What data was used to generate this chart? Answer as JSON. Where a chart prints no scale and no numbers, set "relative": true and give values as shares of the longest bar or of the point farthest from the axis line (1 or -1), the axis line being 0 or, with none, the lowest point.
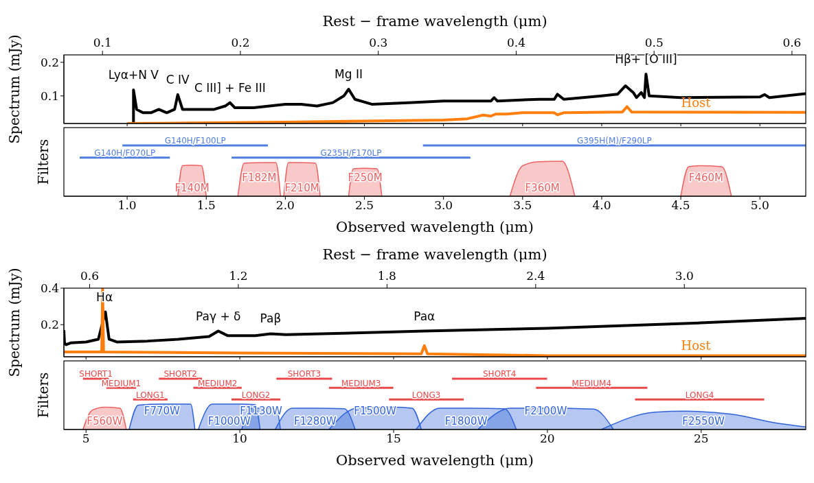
{
  "chart_data": [
    {
      "type": "line",
      "xlim": [
        0.6,
        5.29
      ],
      "xticks": [
        1,
        1.5,
        2,
        2.5,
        3,
        3.5,
        4,
        4.5,
        5
      ],
      "x2lim": [
        0.072,
        0.61
      ],
      "x2ticks": [
        0.1,
        0.2,
        0.3,
        0.4,
        0.5,
        0.6
      ],
      "x2label": "Rest − frame wavelength (μm)",
      "ylim": [
        0.018,
        0.222
      ],
      "yticks": [
        0.1,
        0.2
      ],
      "ylabel": "Spectrum (mJy)",
      "tick_labels": "y",
      "series": [
        {
          "color": "#000000",
          "x": [
            1.04,
            1.04,
            1.06,
            1.1,
            1.15,
            1.2,
            1.25,
            1.3,
            1.32,
            1.35,
            1.45,
            1.55,
            1.62,
            1.65,
            1.68,
            1.8,
            2.0,
            2.1,
            2.2,
            2.3,
            2.37,
            2.4,
            2.44,
            2.55,
            2.8,
            3.0,
            3.3,
            3.32,
            3.34,
            3.6,
            3.7,
            3.72,
            3.76,
            4.0,
            4.1,
            4.15,
            4.2,
            4.22,
            4.25,
            4.27,
            4.28,
            4.3,
            4.5,
            5.0,
            5.03,
            5.06,
            5.29
          ],
          "values": [
            0.02,
            0.118,
            0.06,
            0.05,
            0.05,
            0.06,
            0.05,
            0.06,
            0.104,
            0.06,
            0.06,
            0.06,
            0.07,
            0.08,
            0.065,
            0.065,
            0.075,
            0.075,
            0.07,
            0.08,
            0.1,
            0.12,
            0.09,
            0.075,
            0.08,
            0.085,
            0.085,
            0.095,
            0.085,
            0.09,
            0.09,
            0.105,
            0.09,
            0.1,
            0.105,
            0.13,
            0.11,
            0.095,
            0.11,
            0.095,
            0.165,
            0.1,
            0.095,
            0.097,
            0.104,
            0.095,
            0.107
          ]
        },
        {
          "name": "Host",
          "color": "#ff7f0e",
          "x": [
            1.0,
            2.0,
            3.0,
            3.15,
            3.25,
            3.3,
            3.33,
            3.4,
            3.5,
            3.7,
            3.72,
            3.76,
            4.13,
            4.16,
            4.19,
            5.29
          ],
          "values": [
            0.018,
            0.022,
            0.028,
            0.032,
            0.043,
            0.04,
            0.046,
            0.046,
            0.05,
            0.05,
            0.044,
            0.05,
            0.052,
            0.068,
            0.052,
            0.051
          ]
        }
      ],
      "annotations": [
        {
          "text": "Lyα+N V",
          "x": 1.04,
          "y": 0.118
        },
        {
          "text": "C IV",
          "x": 1.32,
          "y": 0.104
        },
        {
          "text": "C III] + Fe III",
          "x": 1.65,
          "y": 0.08
        },
        {
          "text": "Mg II",
          "x": 2.4,
          "y": 0.12
        },
        {
          "text": "Hβ+ [O III]",
          "x": 4.28,
          "y": 0.165
        }
      ]
    },
    {
      "type": "area",
      "relative": true,
      "xlim": [
        0.6,
        5.29
      ],
      "xticks": [
        {
          "value": 1,
          "label": "1.0"
        },
        1.5,
        {
          "value": 2,
          "label": "2.0"
        },
        2.5,
        {
          "value": 3,
          "label": "3.0"
        },
        3.5,
        {
          "value": 4,
          "label": "4.0"
        },
        4.5,
        {
          "value": 5,
          "label": "5.0"
        }
      ],
      "xlabel": "Observed wavelength (μm)",
      "ylabel": "Filters",
      "tick_labels": "x",
      "series": [
        {
          "type": "line",
          "name": "G140H/F100LP",
          "color": "#4f7ee0",
          "x": [
            0.97,
            1.89
          ],
          "values": [
            1,
            1
          ]
        },
        {
          "type": "line",
          "name": "G140H/F070LP",
          "color": "#4f7ee0",
          "x": [
            0.7,
            1.27
          ],
          "values": [
            0.76,
            0.76
          ]
        },
        {
          "type": "line",
          "name": "G235H/F170LP",
          "color": "#4f7ee0",
          "x": [
            1.66,
            3.17
          ],
          "values": [
            0.76,
            0.76
          ]
        },
        {
          "type": "line",
          "name": "G395H(M)/F290LP",
          "color": "#4f7ee0",
          "x": [
            2.87,
            5.29
          ],
          "values": [
            1,
            1
          ]
        },
        {
          "name": "F140M",
          "color": "#ee6060",
          "x": [
            1.32,
            1.35,
            1.4,
            1.47,
            1.5
          ],
          "values": [
            0,
            0.6,
            0.61,
            0.6,
            0
          ]
        },
        {
          "name": "F182M",
          "color": "#ee6060",
          "x": [
            1.7,
            1.74,
            1.85,
            1.94,
            1.97
          ],
          "values": [
            0,
            0.65,
            0.66,
            0.66,
            0
          ]
        },
        {
          "name": "F210M",
          "color": "#ee6060",
          "x": [
            1.99,
            2.02,
            2.1,
            2.19,
            2.22
          ],
          "values": [
            0,
            0.66,
            0.66,
            0.65,
            0
          ]
        },
        {
          "name": "F250M",
          "color": "#ee6060",
          "x": [
            2.4,
            2.43,
            2.5,
            2.58,
            2.61
          ],
          "values": [
            0,
            0.54,
            0.55,
            0.54,
            0
          ]
        },
        {
          "name": "F360M",
          "color": "#ee6060",
          "x": [
            3.42,
            3.5,
            3.6,
            3.75,
            3.83
          ],
          "values": [
            0,
            0.6,
            0.68,
            0.69,
            0
          ]
        },
        {
          "name": "F460M",
          "color": "#ee6060",
          "x": [
            4.5,
            4.55,
            4.62,
            4.76,
            4.82
          ],
          "values": [
            0,
            0.58,
            0.6,
            0.58,
            0
          ]
        }
      ]
    },
    {
      "type": "line",
      "xlim": [
        4.28,
        28.4
      ],
      "xticks": [
        5,
        10,
        15,
        20,
        25
      ],
      "x2lim": [
        0.496,
        3.49
      ],
      "x2ticks": [
        0.6,
        1.2,
        1.8,
        2.4,
        {
          "value": 3,
          "label": "3.0"
        }
      ],
      "x2label": "Rest − frame wavelength (μm)",
      "ylim": [
        0.024,
        0.4
      ],
      "yticks": [
        0.2,
        0.4
      ],
      "ylabel": "Spectrum (mJy)",
      "tick_labels": "y",
      "series": [
        {
          "color": "#000000",
          "x": [
            4.28,
            4.3,
            4.35,
            4.5,
            5.0,
            5.4,
            5.63,
            5.75,
            6.0,
            7.0,
            8.0,
            9.0,
            9.3,
            9.6,
            10.5,
            11.0,
            11.5,
            15.0,
            16.0,
            20.0,
            25.0,
            28.4
          ],
          "values": [
            0.17,
            0.1,
            0.09,
            0.1,
            0.105,
            0.12,
            0.27,
            0.12,
            0.105,
            0.11,
            0.12,
            0.135,
            0.165,
            0.14,
            0.14,
            0.15,
            0.145,
            0.16,
            0.165,
            0.18,
            0.21,
            0.235
          ]
        },
        {
          "name": "Host",
          "color": "#ff7f0e",
          "x": [
            4.28,
            5.51,
            5.54,
            5.57,
            10.0,
            15.9,
            16.0,
            16.1,
            20.0,
            28.4
          ],
          "values": [
            0.05,
            0.05,
            0.4,
            0.05,
            0.045,
            0.04,
            0.085,
            0.04,
            0.03,
            0.03
          ]
        }
      ],
      "annotations": [
        {
          "text": "Hα",
          "x": 5.6,
          "y": 0.27
        },
        {
          "text": "Paγ + δ",
          "x": 9.3,
          "y": 0.165
        },
        {
          "text": "Paβ",
          "x": 11.0,
          "y": 0.15
        },
        {
          "text": "Paα",
          "x": 16.0,
          "y": 0.165
        }
      ]
    },
    {
      "type": "area",
      "relative": true,
      "xlim": [
        4.28,
        28.4
      ],
      "xticks": [
        5,
        10,
        15,
        20,
        25
      ],
      "xlabel": "Observed wavelength (μm)",
      "ylabel": "Filters",
      "tick_labels": "x",
      "series": [
        {
          "type": "line",
          "name": "SHORT1",
          "color": "#e84848",
          "x": [
            4.9,
            5.74
          ],
          "values": [
            1,
            1
          ]
        },
        {
          "type": "line",
          "name": "MEDIUM1",
          "color": "#e84848",
          "x": [
            5.66,
            6.63
          ],
          "values": [
            0.82,
            0.82
          ]
        },
        {
          "type": "line",
          "name": "LONG1",
          "color": "#e84848",
          "x": [
            6.53,
            7.65
          ],
          "values": [
            0.59,
            0.59
          ]
        },
        {
          "type": "line",
          "name": "SHORT2",
          "color": "#e84848",
          "x": [
            7.37,
            8.77
          ],
          "values": [
            1,
            1
          ]
        },
        {
          "type": "line",
          "name": "MEDIUM2",
          "color": "#e84848",
          "x": [
            8.49,
            10.06
          ],
          "values": [
            0.82,
            0.82
          ]
        },
        {
          "type": "line",
          "name": "LONG2",
          "color": "#e84848",
          "x": [
            9.73,
            11.32
          ],
          "values": [
            0.59,
            0.59
          ]
        },
        {
          "type": "line",
          "name": "SHORT3",
          "color": "#e84848",
          "x": [
            11.19,
            13.0
          ],
          "values": [
            1,
            1
          ]
        },
        {
          "type": "line",
          "name": "MEDIUM3",
          "color": "#e84848",
          "x": [
            12.9,
            14.99
          ],
          "values": [
            0.82,
            0.82
          ]
        },
        {
          "type": "line",
          "name": "LONG3",
          "color": "#e84848",
          "x": [
            14.85,
            17.28
          ],
          "values": [
            0.59,
            0.59
          ]
        },
        {
          "type": "line",
          "name": "SHORT4",
          "color": "#e84848",
          "x": [
            16.9,
            19.99
          ],
          "values": [
            1,
            1
          ]
        },
        {
          "type": "line",
          "name": "MEDIUM4",
          "color": "#e84848",
          "x": [
            19.63,
            23.25
          ],
          "values": [
            0.82,
            0.82
          ]
        },
        {
          "type": "line",
          "name": "LONG4",
          "color": "#e84848",
          "x": [
            22.85,
            27.05
          ],
          "values": [
            0.59,
            0.59
          ]
        },
        {
          "name": "F560W",
          "color": "#ee6060",
          "x": [
            4.9,
            5.2,
            5.6,
            6.1,
            6.31
          ],
          "values": [
            0,
            0.38,
            0.44,
            0.42,
            0
          ]
        },
        {
          "name": "F770W",
          "color": "#2f62d8",
          "x": [
            6.4,
            6.7,
            7.5,
            8.4,
            8.54
          ],
          "values": [
            0,
            0.48,
            0.5,
            0.5,
            0
          ]
        },
        {
          "name": "F1000W",
          "color": "#2f62d8",
          "x": [
            8.65,
            9.1,
            10.0,
            10.5,
            10.66
          ],
          "values": [
            0,
            0.5,
            0.5,
            0.49,
            0
          ]
        },
        {
          "name": "F1130W",
          "color": "#2f62d8",
          "x": [
            10.06,
            10.4,
            10.8,
            11.2,
            11.32
          ],
          "values": [
            0,
            0.42,
            0.42,
            0.4,
            0
          ]
        },
        {
          "name": "F1280W",
          "color": "#2f62d8",
          "x": [
            11.15,
            11.7,
            12.5,
            13.4,
            13.75
          ],
          "values": [
            0,
            0.42,
            0.42,
            0.41,
            0
          ]
        },
        {
          "name": "F1500W",
          "color": "#2f62d8",
          "x": [
            12.9,
            13.8,
            15.0,
            15.6,
            15.9
          ],
          "values": [
            0,
            0.42,
            0.44,
            0.42,
            0
          ]
        },
        {
          "name": "F1800W",
          "color": "#2f62d8",
          "x": [
            15.73,
            16.5,
            17.5,
            18.6,
            18.99
          ],
          "values": [
            0,
            0.42,
            0.42,
            0.41,
            0
          ]
        },
        {
          "name": "F2100W",
          "color": "#2f62d8",
          "x": [
            17.74,
            18.8,
            20.0,
            21.5,
            22.15
          ],
          "values": [
            0,
            0.42,
            0.42,
            0.4,
            0
          ]
        },
        {
          "name": "F2550W",
          "color": "#2f62d8",
          "x": [
            21.75,
            23.5,
            24.5,
            26.0,
            27.5,
            28.4
          ],
          "values": [
            0,
            0.34,
            0.36,
            0.3,
            0.12,
            0.05
          ]
        }
      ]
    }
  ]
}
